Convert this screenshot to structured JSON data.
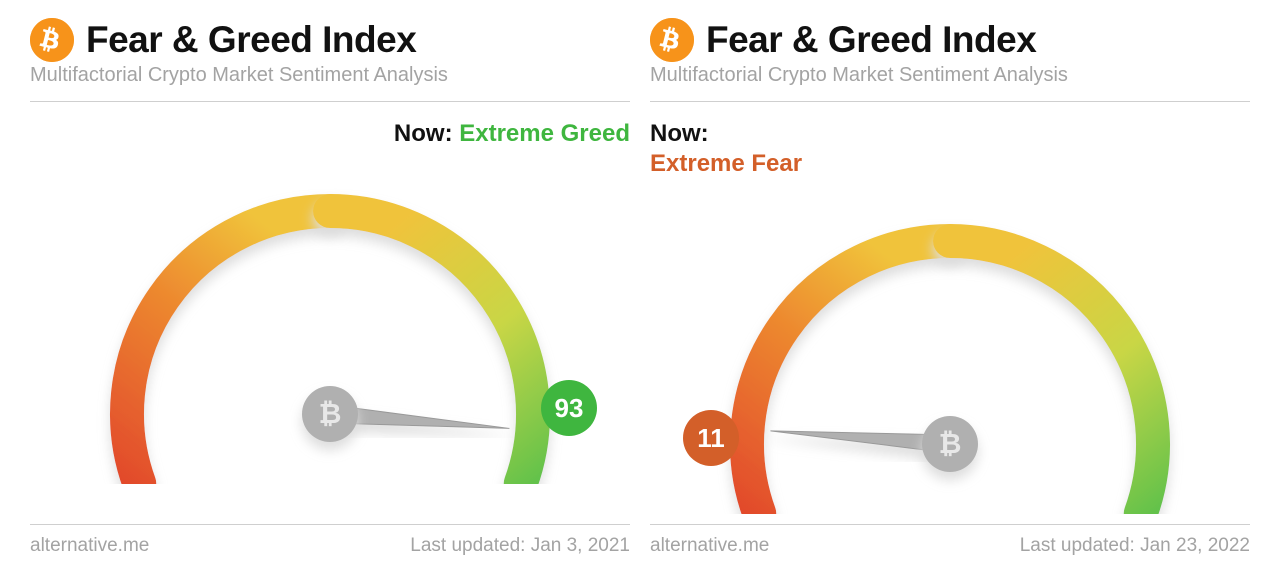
{
  "panels": [
    {
      "title": "Fear & Greed Index",
      "subtitle": "Multifactorial Crypto Market Sentiment Analysis",
      "now_label": "Now:",
      "sentiment": "Extreme Greed",
      "sentiment_color": "#3fb63f",
      "sentiment_inline": true,
      "now_align": "right",
      "value": 93,
      "badge_color": "#3fb63f",
      "badge_text_color": "#ffffff",
      "badge_side": "right",
      "source": "alternative.me",
      "updated": "Last updated: Jan 3, 2021",
      "icon_bg": "#f7931a"
    },
    {
      "title": "Fear & Greed Index",
      "subtitle": "Multifactorial Crypto Market Sentiment Analysis",
      "now_label": "Now:",
      "sentiment": "Extreme Fear",
      "sentiment_color": "#d35f29",
      "sentiment_inline": false,
      "now_align": "left",
      "value": 11,
      "badge_color": "#d35f29",
      "badge_text_color": "#ffffff",
      "badge_side": "left",
      "source": "alternative.me",
      "updated": "Last updated: Jan 23, 2022",
      "icon_bg": "#f7931a"
    }
  ],
  "gauge": {
    "type": "gauge",
    "min": 0,
    "max": 100,
    "start_angle_deg": 200,
    "end_angle_deg": -20,
    "colors_gradient": [
      "#e24a2c",
      "#ed8a2f",
      "#f0c33b",
      "#c9d645",
      "#63c24b"
    ],
    "arc_width": 34,
    "background_color": "#ffffff",
    "needle_color": "#b0b0b0",
    "hub_color": "#b0b0b0",
    "hub_radius": 28,
    "badge_radius": 28,
    "badge_fontsize": 26,
    "title_fontsize": 37,
    "subtitle_fontsize": 20,
    "now_fontsize": 24,
    "footer_fontsize": 19,
    "shadow_color": "#dddddd"
  }
}
